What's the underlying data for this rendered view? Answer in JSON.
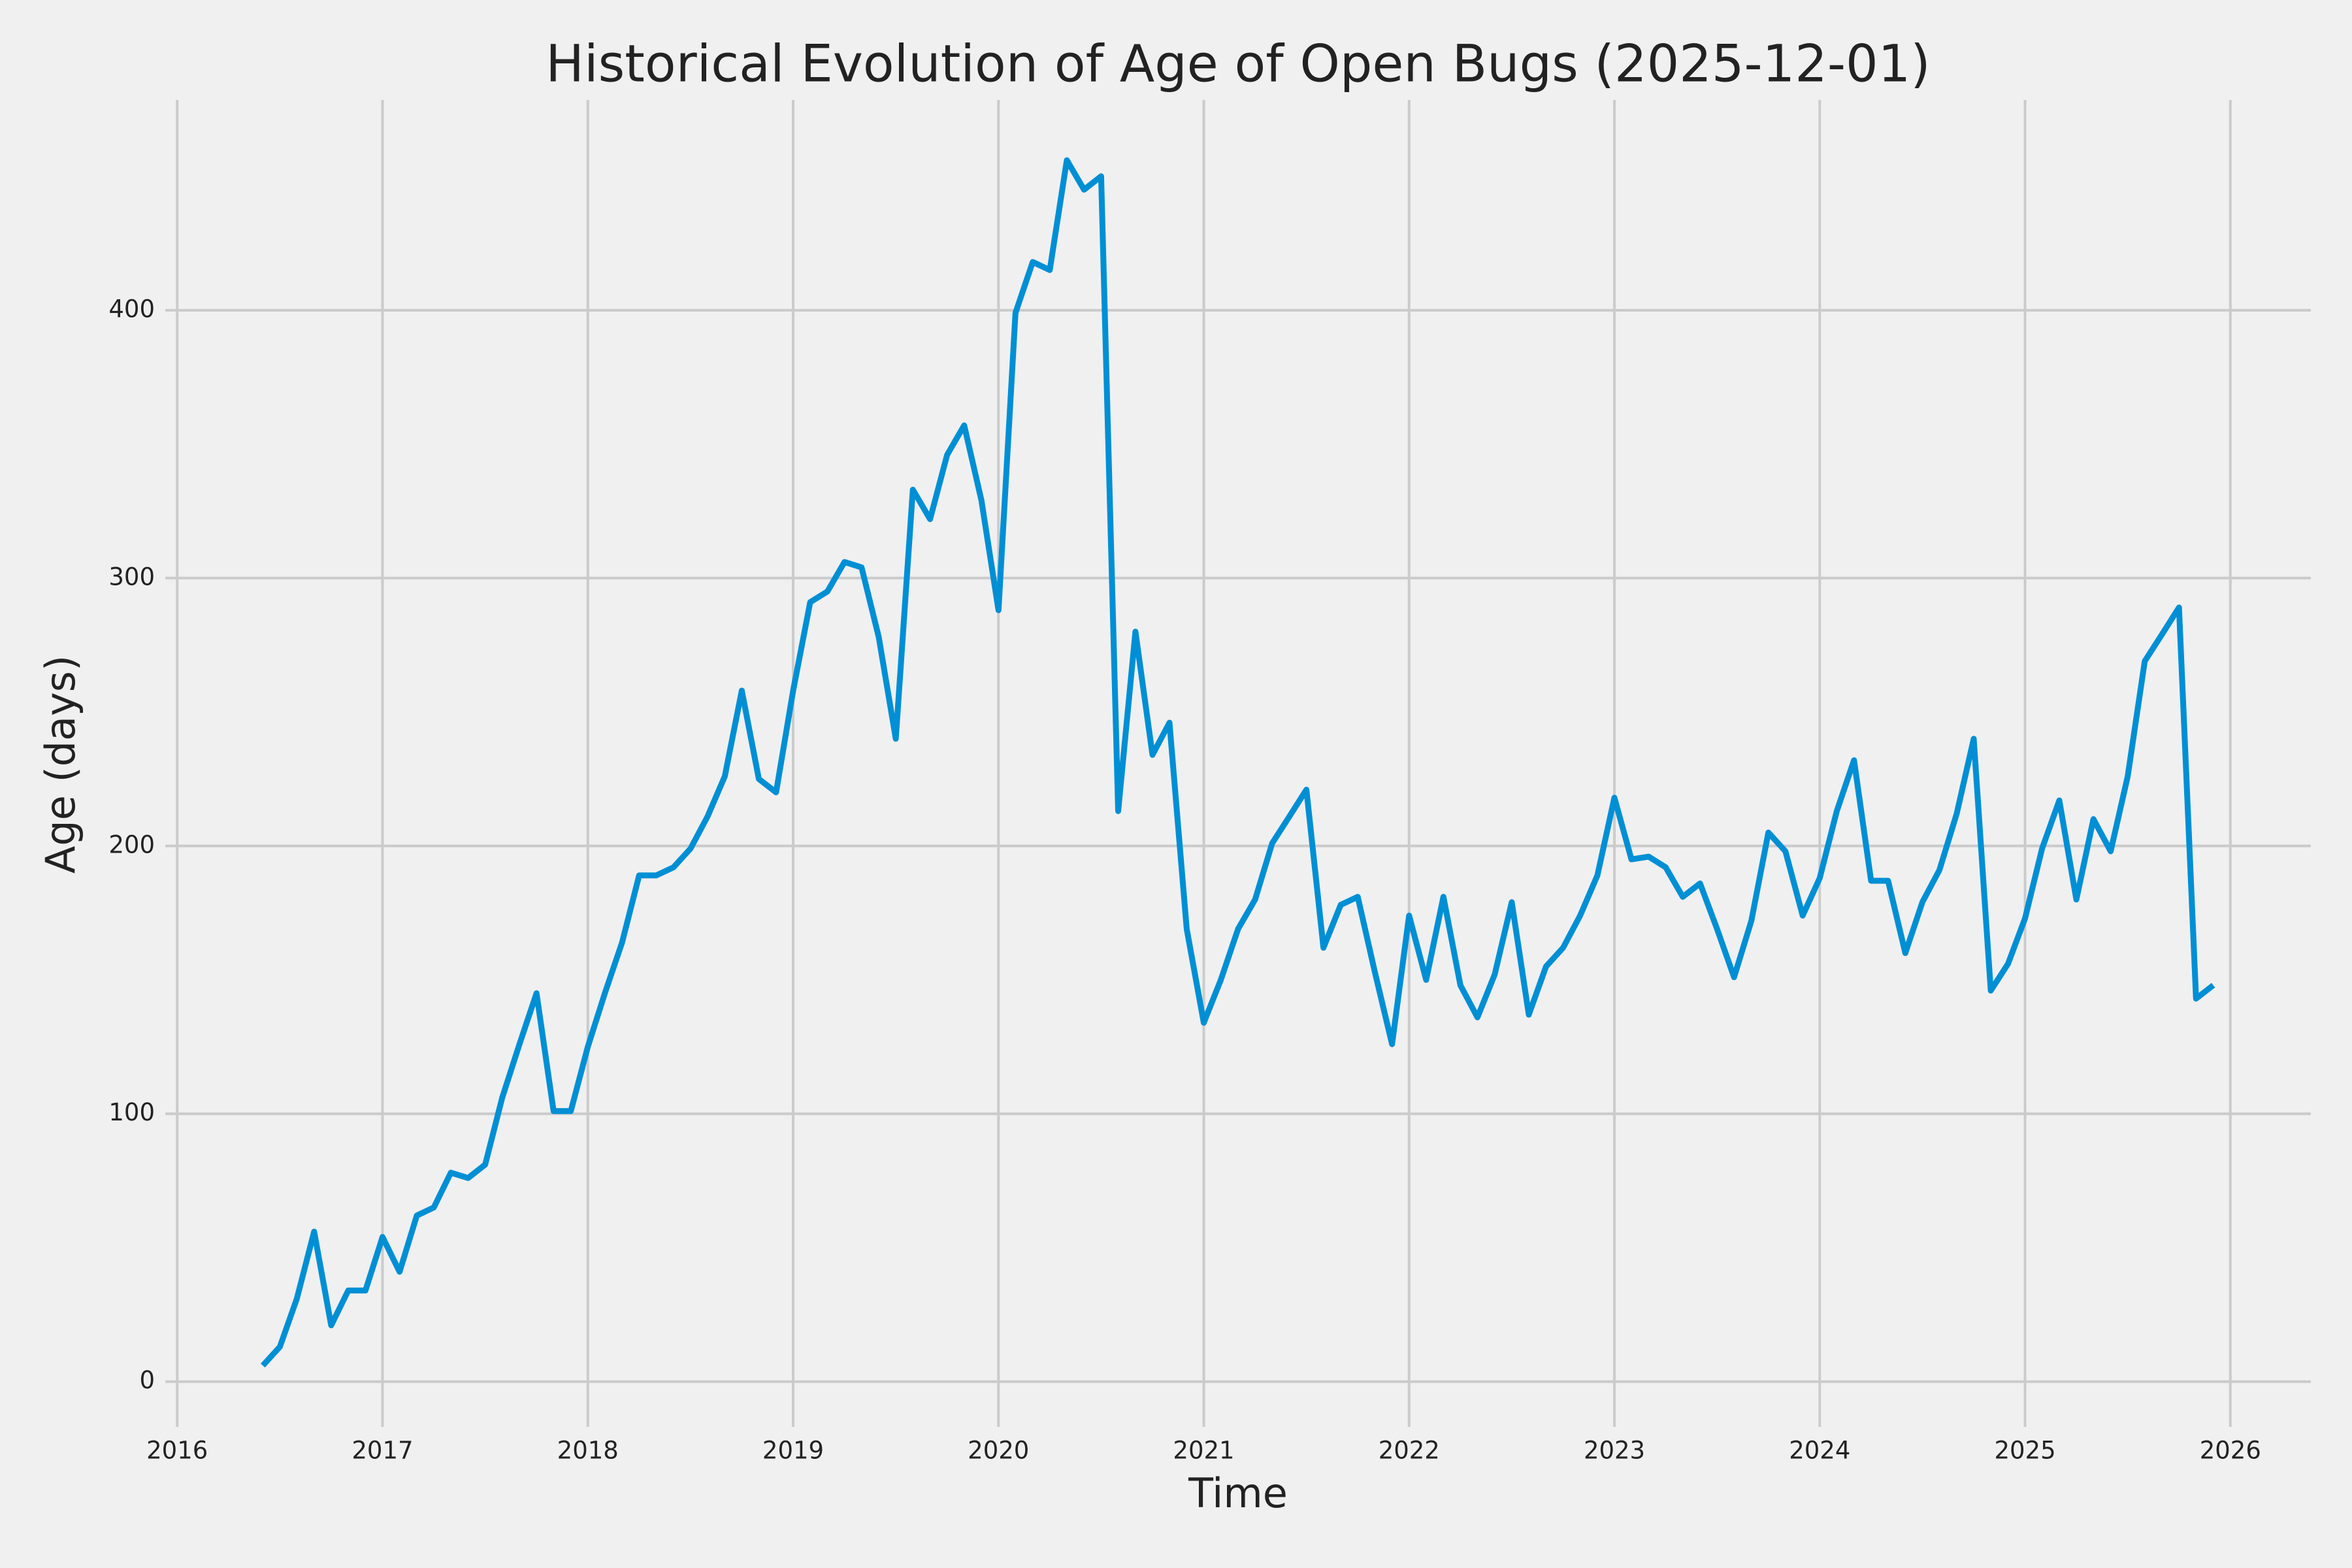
{
  "chart_data": {
    "type": "line",
    "title": "Historical Evolution of Age of Open Bugs (2025-12-01)",
    "x_label": "Time",
    "y_label": "Age (days)",
    "x": [
      2016.417,
      2016.5,
      2016.583,
      2016.667,
      2016.75,
      2016.833,
      2016.917,
      2017.0,
      2017.083,
      2017.167,
      2017.25,
      2017.333,
      2017.417,
      2017.5,
      2017.583,
      2017.667,
      2017.75,
      2017.833,
      2017.917,
      2018.0,
      2018.083,
      2018.167,
      2018.25,
      2018.333,
      2018.417,
      2018.5,
      2018.583,
      2018.667,
      2018.75,
      2018.833,
      2018.917,
      2019.0,
      2019.083,
      2019.167,
      2019.25,
      2019.333,
      2019.417,
      2019.5,
      2019.583,
      2019.667,
      2019.75,
      2019.833,
      2019.917,
      2020.0,
      2020.083,
      2020.167,
      2020.25,
      2020.333,
      2020.417,
      2020.5,
      2020.583,
      2020.667,
      2020.75,
      2020.833,
      2020.917,
      2021.0,
      2021.083,
      2021.167,
      2021.25,
      2021.333,
      2021.417,
      2021.5,
      2021.583,
      2021.667,
      2021.75,
      2021.833,
      2021.917,
      2022.0,
      2022.083,
      2022.167,
      2022.25,
      2022.333,
      2022.417,
      2022.5,
      2022.583,
      2022.667,
      2022.75,
      2022.833,
      2022.917,
      2023.0,
      2023.083,
      2023.167,
      2023.25,
      2023.333,
      2023.417,
      2023.5,
      2023.583,
      2023.667,
      2023.75,
      2023.833,
      2023.917,
      2024.0,
      2024.083,
      2024.167,
      2024.25,
      2024.333,
      2024.417,
      2024.5,
      2024.583,
      2024.667,
      2024.75,
      2024.833,
      2024.917,
      2025.0,
      2025.083,
      2025.167,
      2025.25,
      2025.333,
      2025.417,
      2025.5,
      2025.583,
      2025.667,
      2025.75,
      2025.833,
      2025.917
    ],
    "series": [
      {
        "name": "Age of open bugs",
        "color": "#008fd5",
        "values": [
          6,
          13,
          31,
          56,
          21,
          34,
          34,
          54,
          41,
          62,
          65,
          78,
          76,
          81,
          106,
          126,
          145,
          101,
          101,
          125,
          145,
          164,
          189,
          189,
          192,
          199,
          211,
          226,
          258,
          225,
          220,
          258,
          291,
          295,
          306,
          304,
          278,
          240,
          333,
          322,
          346,
          357,
          329,
          288,
          399,
          418,
          415,
          456,
          445,
          450,
          213,
          280,
          234,
          246,
          169,
          134,
          150,
          169,
          180,
          201,
          211,
          221,
          162,
          178,
          181,
          153,
          126,
          174,
          150,
          181,
          148,
          136,
          152,
          179,
          137,
          155,
          162,
          174,
          189,
          218,
          195,
          196,
          192,
          181,
          186,
          169,
          151,
          172,
          205,
          198,
          174,
          188,
          213,
          232,
          187,
          187,
          160,
          179,
          191,
          212,
          240,
          146,
          156,
          173,
          199,
          217,
          180,
          210,
          198,
          226,
          269,
          279,
          289,
          143,
          148
        ]
      }
    ],
    "xlim": [
      2015.942,
      2026.392
    ],
    "xticks": [
      2016,
      2017,
      2018,
      2019,
      2020,
      2021,
      2022,
      2023,
      2024,
      2025,
      2026
    ],
    "ylim": [
      -16.9,
      478.5
    ],
    "yticks": [
      0,
      100,
      200,
      300,
      400
    ],
    "grid": true
  }
}
